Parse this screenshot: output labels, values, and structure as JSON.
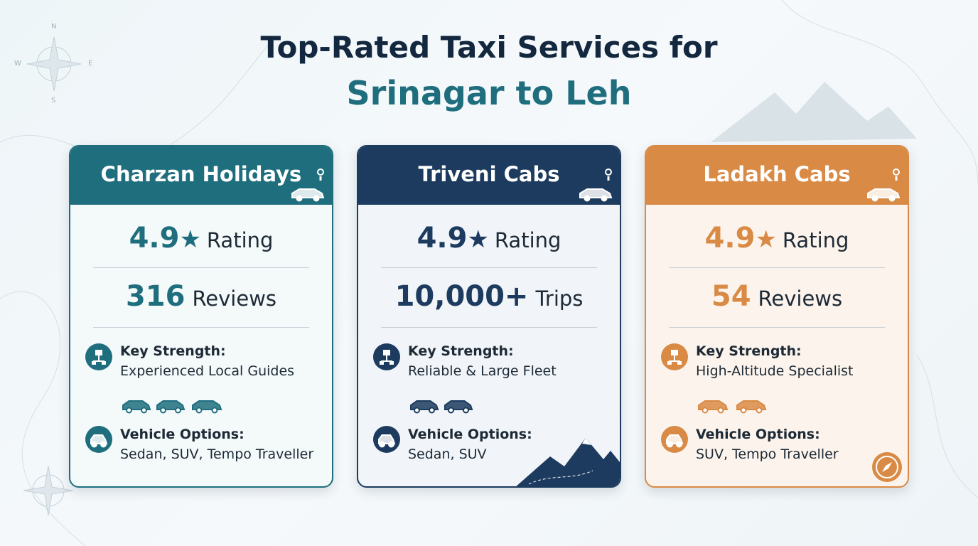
{
  "header": {
    "title_line1": "Top-Rated Taxi Services for",
    "title_line2": "Srinagar to Leh"
  },
  "compass": [
    "N",
    "W",
    "E",
    "S"
  ],
  "cards": [
    {
      "name": "Charzan Holidays",
      "color": "#1f6e7e",
      "tint": "#f4f9fa",
      "rating": 4.9,
      "rating_label": "Rating",
      "stat_value": 316,
      "stat_label": "Reviews",
      "strength_label": "Key Strength:",
      "strength": "Experienced Local Guides",
      "vehicles_label": "Vehicle Options:",
      "vehicles": "Sedan, SUV, Tempo Traveller"
    },
    {
      "name": "Triveni Cabs",
      "color": "#1c3b5e",
      "tint": "#f1f4f8",
      "rating": 4.9,
      "rating_label": "Rating",
      "stat_value": "10,000+",
      "stat_label": "Trips",
      "strength_label": "Key Strength:",
      "strength": "Reliable & Large Fleet",
      "vehicles_label": "Vehicle Options:",
      "vehicles": "Sedan, SUV"
    },
    {
      "name": "Ladakh Cabs",
      "color": "#d98a45",
      "tint": "#fcf4ec",
      "rating": 4.9,
      "rating_label": "Rating",
      "stat_value": 54,
      "stat_label": "Reviews",
      "strength_label": "Key Strength:",
      "strength": "High-Altitude Specialist",
      "vehicles_label": "Vehicle Options:",
      "vehicles": "SUV, Tempo Traveller"
    }
  ]
}
